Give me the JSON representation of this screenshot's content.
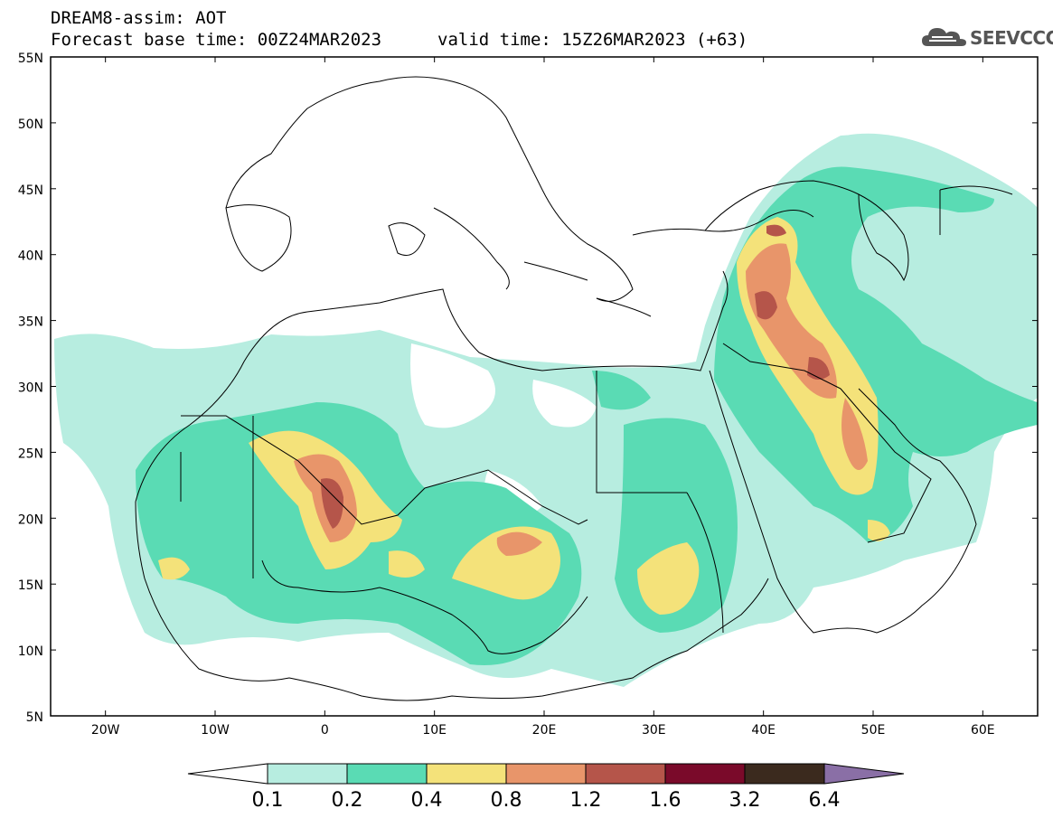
{
  "header": {
    "title_line1": "DREAM8-assim: AOT",
    "title_line2": "Forecast base time: 00Z24MAR2023",
    "valid_time": "valid time: 15Z26MAR2023 (+63)"
  },
  "logo": {
    "text": "SEEVCCC",
    "icon": "cloud-icon",
    "color": "#555555"
  },
  "axes": {
    "lat_labels": [
      "55N",
      "50N",
      "45N",
      "40N",
      "35N",
      "30N",
      "25N",
      "20N",
      "15N",
      "10N",
      "5N"
    ],
    "lon_labels": [
      "20W",
      "10W",
      "0",
      "10E",
      "20E",
      "30E",
      "40E",
      "50E",
      "60E"
    ]
  },
  "colorbar": {
    "labels": [
      "0.1",
      "0.2",
      "0.4",
      "0.8",
      "1.2",
      "1.6",
      "3.2",
      "6.4"
    ],
    "colors": [
      "#b7ede0",
      "#5adbb4",
      "#f4e27a",
      "#e8956a",
      "#b5554a",
      "#7a0a2a",
      "#3b2a1e",
      "#8a6fa6"
    ],
    "under_color": "#ffffff",
    "over_color": "#8a6fa6"
  },
  "palette": {
    "lev1": "#b7ede0",
    "lev2": "#5adbb4",
    "lev3": "#f4e27a",
    "lev4": "#e8956a",
    "lev5": "#b5554a"
  }
}
